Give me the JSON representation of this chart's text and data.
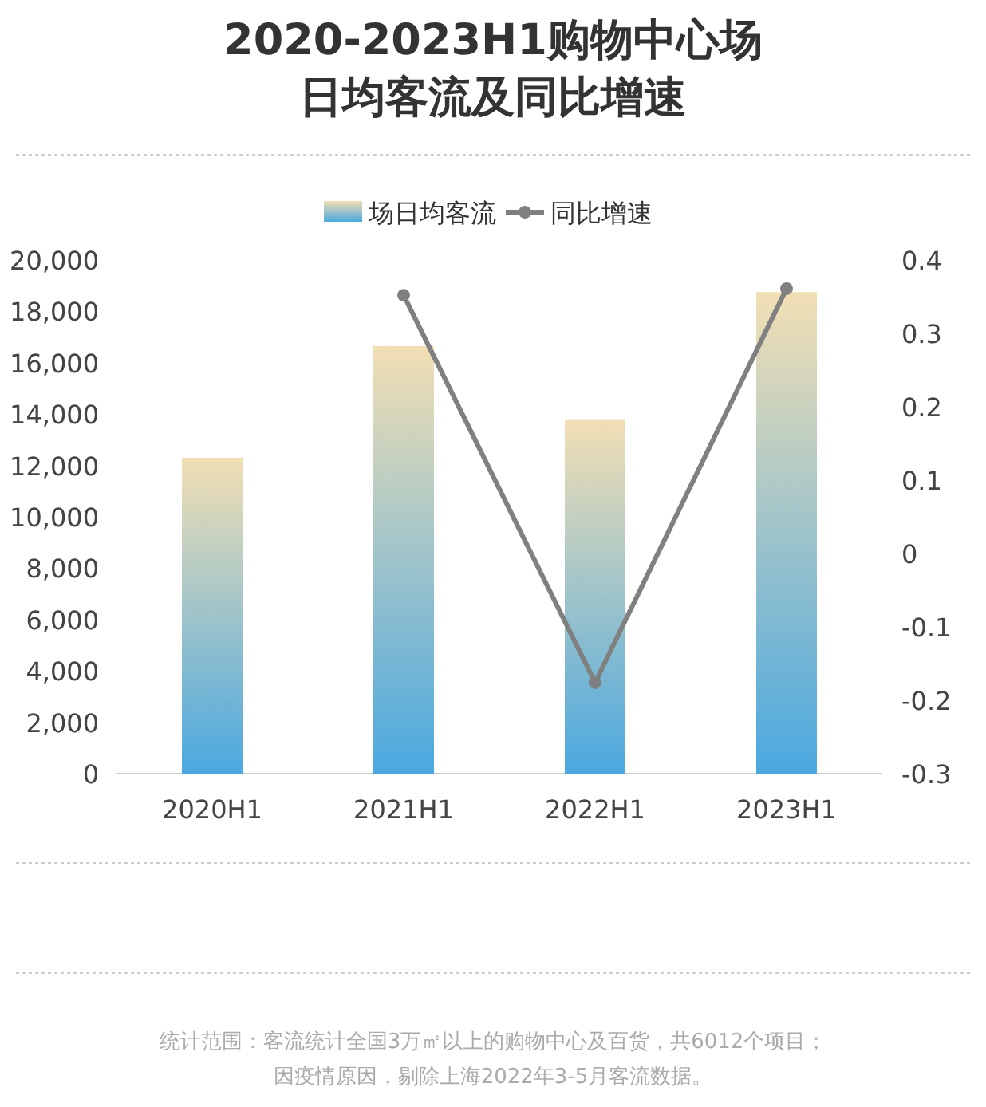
{
  "chart_data": {
    "type": "bar",
    "title": "2020-2023H1购物中心场日均客流及同比增速",
    "categories": [
      "2020H1",
      "2021H1",
      "2022H1",
      "2023H1"
    ],
    "series": [
      {
        "name": "场日均客流",
        "color": "#4aa8e0",
        "values": [
          12300,
          16650,
          13800,
          18750
        ]
      },
      {
        "name": "同比增速",
        "type": "line",
        "axis": "y2",
        "color": "#808080",
        "marker": "circle",
        "values": [
          null,
          0.352,
          -0.176,
          0.361
        ]
      }
    ],
    "ylim": [
      0,
      20000
    ],
    "yticks": [
      {
        "value": 0,
        "label": "0"
      },
      {
        "value": 2000,
        "label": "2,000"
      },
      {
        "value": 4000,
        "label": "4,000"
      },
      {
        "value": 6000,
        "label": "6,000"
      },
      {
        "value": 8000,
        "label": "8,000"
      },
      {
        "value": 10000,
        "label": "10,000"
      },
      {
        "value": 12000,
        "label": "12,000"
      },
      {
        "value": 14000,
        "label": "14,000"
      },
      {
        "value": 16000,
        "label": "16,000"
      },
      {
        "value": 18000,
        "label": "18,000"
      },
      {
        "value": 20000,
        "label": "20,000"
      }
    ],
    "y2lim": [
      -0.3,
      0.4
    ],
    "y2ticks": [
      -0.3,
      -0.2,
      -0.1,
      0,
      0.1,
      0.2,
      0.3,
      0.4
    ],
    "legend": "top",
    "grid": false,
    "annotations": [
      "统计范围：客流统计全国3万㎡以上的购物中心及百货，共6012个项目；",
      "因疫情原因，剔除上海2022年3-5月客流数据。"
    ]
  }
}
